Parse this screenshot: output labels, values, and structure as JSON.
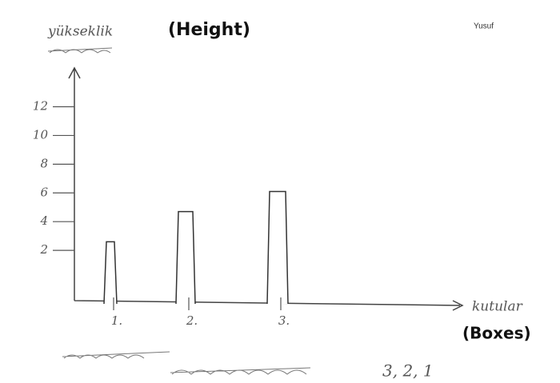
{
  "chart_data": {
    "type": "bar",
    "title": "(Height)",
    "author": "Yusuf",
    "y_axis_label": "yükseklik",
    "x_axis_label": "kutular",
    "x_axis_translation": "(Boxes)",
    "categories": [
      "1.",
      "2.",
      "3."
    ],
    "values": [
      2.6,
      4.7,
      6.1
    ],
    "color": "#ffffff",
    "ylim": [
      -1.5,
      14.7
    ],
    "yticks": [
      2,
      4,
      6,
      8,
      10,
      12
    ],
    "annotation": "3, 2, 1"
  }
}
